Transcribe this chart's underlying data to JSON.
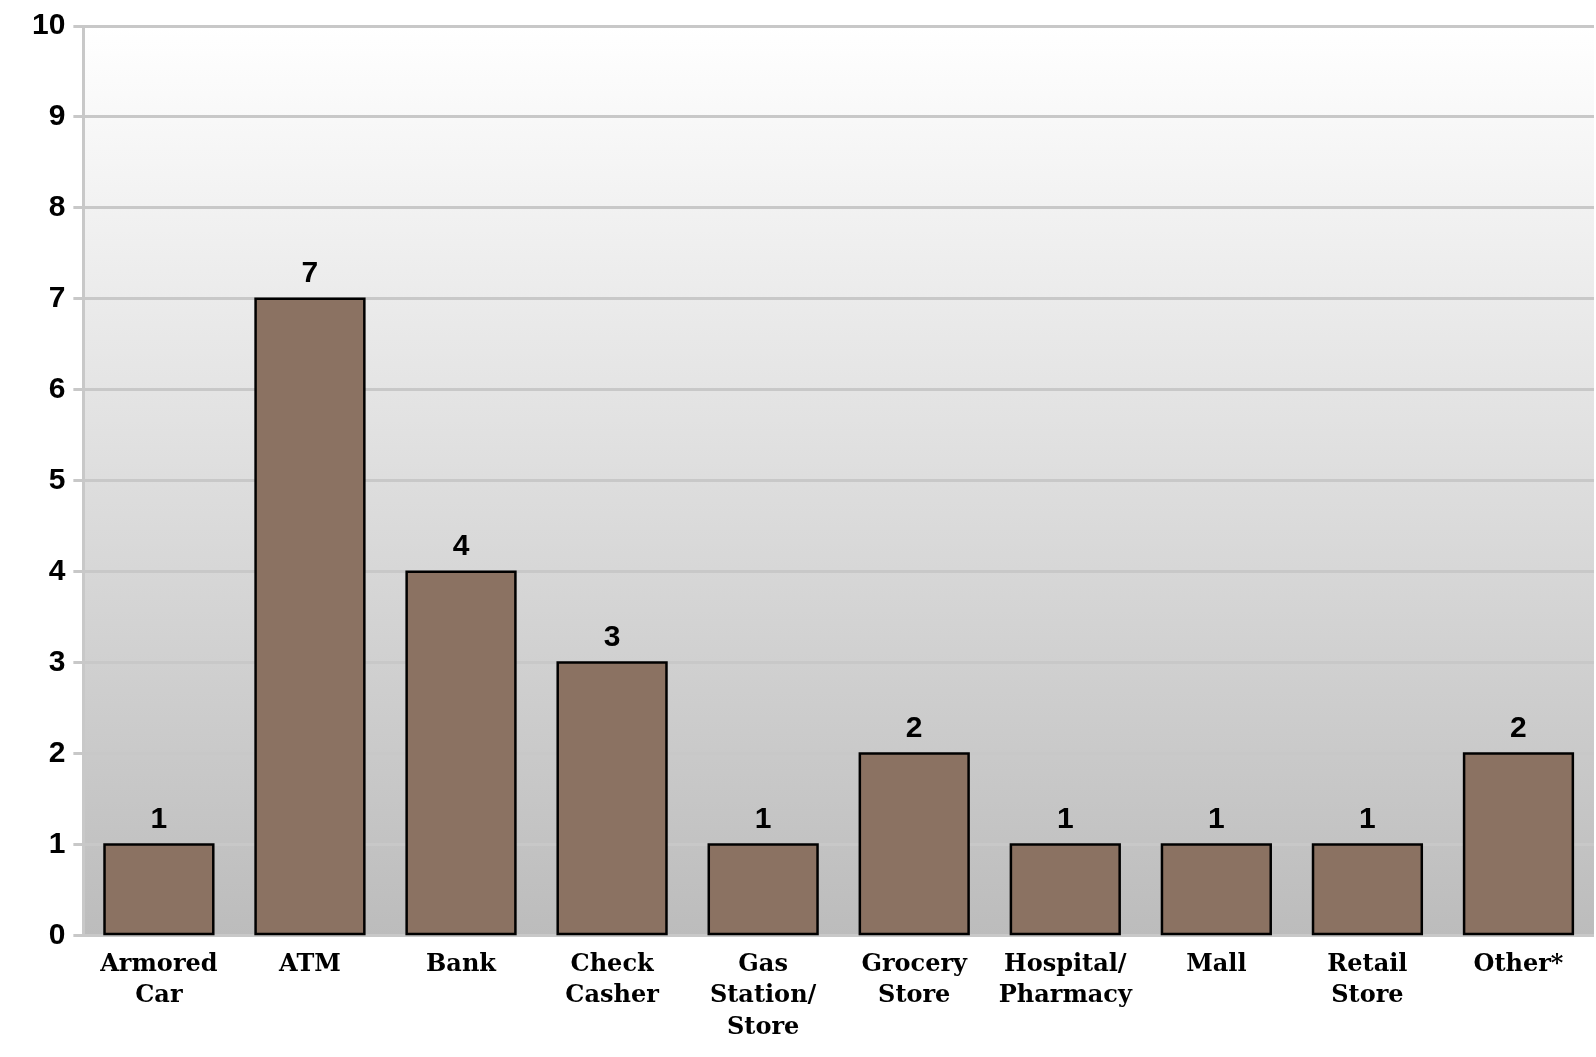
{
  "chart_data": {
    "type": "bar",
    "categories": [
      "Armored Car",
      "ATM",
      "Bank",
      "Check Casher",
      "Gas Station/ Store",
      "Grocery Store",
      "Hospital/ Pharmacy",
      "Mall",
      "Retail Store",
      "Other*"
    ],
    "values": [
      1,
      7,
      4,
      3,
      1,
      2,
      1,
      1,
      1,
      2
    ],
    "color": "#8b7262",
    "ylim": [
      0,
      10
    ],
    "yticks": [
      0,
      1,
      2,
      3,
      4,
      5,
      6,
      7,
      8,
      9,
      10
    ],
    "grid": "y",
    "legend": false,
    "data_labels": true
  }
}
